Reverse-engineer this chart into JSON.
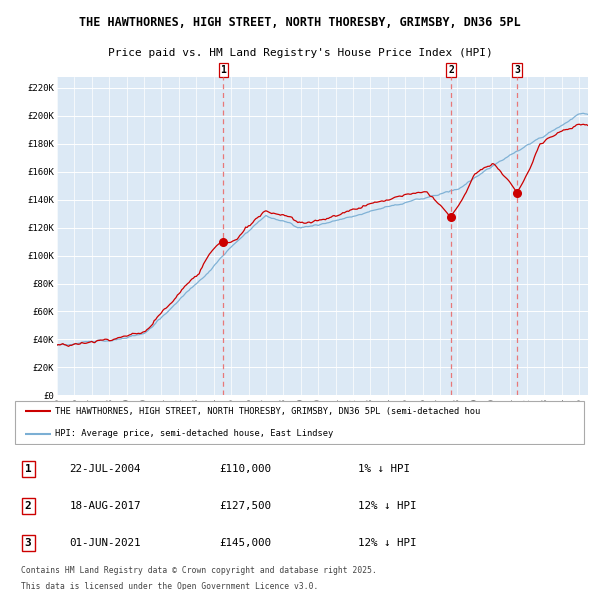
{
  "title1": "THE HAWTHORNES, HIGH STREET, NORTH THORESBY, GRIMSBY, DN36 5PL",
  "title2": "Price paid vs. HM Land Registry's House Price Index (HPI)",
  "legend_red": "THE HAWTHORNES, HIGH STREET, NORTH THORESBY, GRIMSBY, DN36 5PL (semi-detached hou",
  "legend_blue": "HPI: Average price, semi-detached house, East Lindsey",
  "ylabel_ticks": [
    "£0",
    "£20K",
    "£40K",
    "£60K",
    "£80K",
    "£100K",
    "£120K",
    "£140K",
    "£160K",
    "£180K",
    "£200K",
    "£220K"
  ],
  "ytick_values": [
    0,
    20000,
    40000,
    60000,
    80000,
    100000,
    120000,
    140000,
    160000,
    180000,
    200000,
    220000
  ],
  "xmin": 1995.0,
  "xmax": 2025.5,
  "ymin": 0,
  "ymax": 220000,
  "bg_color": "#dce9f5",
  "grid_color": "#ffffff",
  "red_color": "#cc0000",
  "blue_color": "#7bafd4",
  "vline_color": "#e87878",
  "transactions": [
    {
      "label": "1",
      "date_num": 2004.55,
      "price": 110000,
      "pct": "1%",
      "date_str": "22-JUL-2004"
    },
    {
      "label": "2",
      "date_num": 2017.63,
      "price": 127500,
      "pct": "12%",
      "date_str": "18-AUG-2017"
    },
    {
      "label": "3",
      "date_num": 2021.42,
      "price": 145000,
      "pct": "12%",
      "date_str": "01-JUN-2021"
    }
  ],
  "footer1": "Contains HM Land Registry data © Crown copyright and database right 2025.",
  "footer2": "This data is licensed under the Open Government Licence v3.0."
}
